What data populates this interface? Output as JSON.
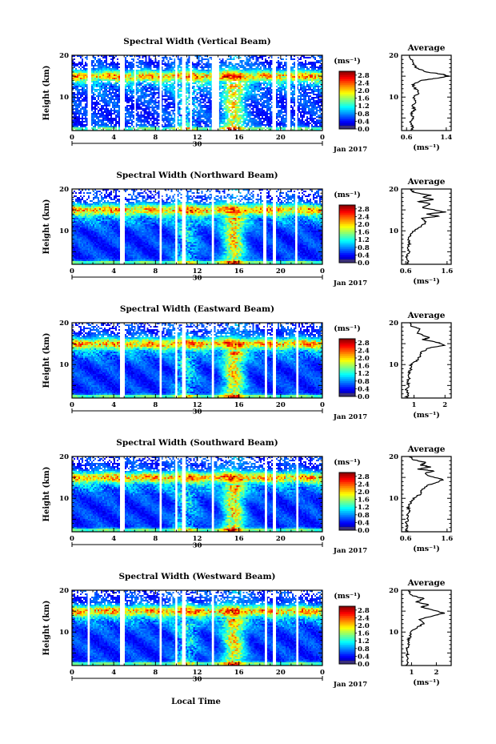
{
  "figure": {
    "xlabel": "Local Time",
    "date_label": "Jan 2017",
    "day_label": "30"
  },
  "chart_data": [
    {
      "type": "heatmap",
      "title": "Spectral Width (Vertical Beam)",
      "ylabel": "Height (km)",
      "x_ticks": [
        "0",
        "4",
        "8",
        "12",
        "16",
        "20",
        "0"
      ],
      "xlim": [
        0,
        24
      ],
      "y_ticks": [
        "10",
        "20"
      ],
      "ylim": [
        2,
        20
      ],
      "colorbar": {
        "unit": "(ms⁻¹)",
        "ticks": [
          "2.8",
          "2.4",
          "2.0",
          "1.6",
          "1.2",
          "0.8",
          "0.4",
          "0.0"
        ],
        "range": [
          0,
          3.0
        ]
      },
      "gaps_hours": [
        [
          1.5,
          1.8
        ],
        [
          4.6,
          5.0
        ],
        [
          6.0,
          6.1
        ],
        [
          8.4,
          8.6
        ],
        [
          9.9,
          10.1
        ],
        [
          10.6,
          10.9
        ],
        [
          11.3,
          11.5
        ],
        [
          13.4,
          14.1
        ],
        [
          19.2,
          19.5
        ],
        [
          20.6,
          20.9
        ],
        [
          21.4,
          21.6
        ]
      ],
      "profile": {
        "title": "Average",
        "x_ticks": [
          "0.6",
          "1.4"
        ],
        "xlim": [
          0.5,
          1.5
        ],
        "xlabel": "(ms⁻¹)",
        "y_ticks": [
          "10",
          "20"
        ],
        "ylim": [
          2,
          20
        ],
        "points": [
          [
            0.7,
            2
          ],
          [
            0.72,
            3
          ],
          [
            0.68,
            4
          ],
          [
            0.74,
            5
          ],
          [
            0.7,
            6
          ],
          [
            0.76,
            7
          ],
          [
            0.72,
            8
          ],
          [
            0.8,
            9
          ],
          [
            0.74,
            10
          ],
          [
            0.86,
            11
          ],
          [
            0.78,
            12
          ],
          [
            0.72,
            13
          ],
          [
            0.9,
            14
          ],
          [
            1.2,
            14.5
          ],
          [
            1.45,
            15
          ],
          [
            1.3,
            15.5
          ],
          [
            1.0,
            16
          ],
          [
            0.8,
            17
          ],
          [
            0.74,
            18
          ],
          [
            0.7,
            19
          ],
          [
            0.66,
            20
          ]
        ]
      }
    },
    {
      "type": "heatmap",
      "title": "Spectral Width (Northward Beam)",
      "ylabel": "Height (km)",
      "x_ticks": [
        "0",
        "4",
        "8",
        "12",
        "16",
        "20",
        "0"
      ],
      "xlim": [
        0,
        24
      ],
      "y_ticks": [
        "10",
        "20"
      ],
      "ylim": [
        2,
        20
      ],
      "colorbar": {
        "unit": "(ms⁻¹)",
        "ticks": [
          "2.8",
          "2.4",
          "2.0",
          "1.6",
          "1.2",
          "0.8",
          "0.4",
          "0.0"
        ],
        "range": [
          0,
          3.0
        ]
      },
      "gaps_hours": [
        [
          4.6,
          5.0
        ],
        [
          8.4,
          8.6
        ],
        [
          9.9,
          10.1
        ],
        [
          10.6,
          10.9
        ],
        [
          13.4,
          13.6
        ],
        [
          18.4,
          18.6
        ],
        [
          19.3,
          19.5
        ],
        [
          21.4,
          21.6
        ]
      ],
      "profile": {
        "title": "Average",
        "x_ticks": [
          "0.6",
          "1.6"
        ],
        "xlim": [
          0.5,
          1.7
        ],
        "xlabel": "(ms⁻¹)",
        "y_ticks": [
          "10",
          "20"
        ],
        "ylim": [
          2,
          20
        ],
        "points": [
          [
            0.62,
            2
          ],
          [
            0.66,
            3
          ],
          [
            0.62,
            4
          ],
          [
            0.68,
            5
          ],
          [
            0.64,
            6
          ],
          [
            0.7,
            7
          ],
          [
            0.66,
            8
          ],
          [
            0.72,
            9
          ],
          [
            0.8,
            10
          ],
          [
            0.95,
            11
          ],
          [
            1.1,
            12
          ],
          [
            1.0,
            13
          ],
          [
            1.4,
            13.5
          ],
          [
            1.1,
            14
          ],
          [
            1.55,
            14.5
          ],
          [
            1.3,
            15
          ],
          [
            1.0,
            15.5
          ],
          [
            1.2,
            16.5
          ],
          [
            0.9,
            17
          ],
          [
            1.3,
            17.5
          ],
          [
            1.0,
            18
          ],
          [
            1.2,
            18.5
          ],
          [
            0.8,
            19.2
          ],
          [
            0.7,
            20
          ]
        ]
      }
    },
    {
      "type": "heatmap",
      "title": "Spectral Width (Eastward Beam)",
      "ylabel": "Height (km)",
      "x_ticks": [
        "0",
        "4",
        "8",
        "12",
        "16",
        "20",
        "0"
      ],
      "xlim": [
        0,
        24
      ],
      "y_ticks": [
        "10",
        "20"
      ],
      "ylim": [
        2,
        20
      ],
      "colorbar": {
        "unit": "(ms⁻¹)",
        "ticks": [
          "2.8",
          "2.4",
          "2.0",
          "1.6",
          "1.2",
          "0.8",
          "0.4",
          "0.0"
        ],
        "range": [
          0,
          3.0
        ]
      },
      "gaps_hours": [
        [
          4.6,
          5.0
        ],
        [
          8.4,
          8.6
        ],
        [
          9.9,
          10.1
        ],
        [
          10.6,
          10.9
        ],
        [
          13.4,
          13.6
        ],
        [
          18.5,
          18.7
        ],
        [
          19.3,
          19.5
        ],
        [
          21.5,
          21.7
        ]
      ],
      "profile": {
        "title": "Average",
        "x_ticks": [
          "1",
          "2"
        ],
        "xlim": [
          0.6,
          2.2
        ],
        "xlabel": "(ms⁻¹)",
        "y_ticks": [
          "10",
          "20"
        ],
        "ylim": [
          2,
          20
        ],
        "points": [
          [
            0.75,
            2
          ],
          [
            0.8,
            3
          ],
          [
            0.76,
            4
          ],
          [
            0.82,
            5
          ],
          [
            0.8,
            6
          ],
          [
            0.86,
            7
          ],
          [
            0.84,
            8
          ],
          [
            0.9,
            9
          ],
          [
            0.9,
            10
          ],
          [
            1.1,
            11
          ],
          [
            1.2,
            12
          ],
          [
            1.25,
            13
          ],
          [
            1.5,
            14
          ],
          [
            2.0,
            14.6
          ],
          [
            1.8,
            15.2
          ],
          [
            1.3,
            16
          ],
          [
            1.5,
            16.5
          ],
          [
            1.1,
            17.5
          ],
          [
            1.2,
            18.5
          ],
          [
            0.9,
            19.2
          ],
          [
            0.85,
            20
          ]
        ]
      }
    },
    {
      "type": "heatmap",
      "title": "Spectral Width (Southward Beam)",
      "ylabel": "Height (km)",
      "x_ticks": [
        "0",
        "4",
        "8",
        "12",
        "16",
        "20",
        "0"
      ],
      "xlim": [
        0,
        24
      ],
      "y_ticks": [
        "10",
        "20"
      ],
      "ylim": [
        2,
        20
      ],
      "colorbar": {
        "unit": "(ms⁻¹)",
        "ticks": [
          "2.8",
          "2.4",
          "2.0",
          "1.6",
          "1.2",
          "0.8",
          "0.4",
          "0.0"
        ],
        "range": [
          0,
          3.0
        ]
      },
      "gaps_hours": [
        [
          4.6,
          5.0
        ],
        [
          8.4,
          8.6
        ],
        [
          9.9,
          10.1
        ],
        [
          10.6,
          10.9
        ],
        [
          13.4,
          13.6
        ],
        [
          18.5,
          18.7
        ],
        [
          19.3,
          19.5
        ],
        [
          21.5,
          21.7
        ]
      ],
      "profile": {
        "title": "Average",
        "x_ticks": [
          "0.6",
          "1.6"
        ],
        "xlim": [
          0.5,
          1.7
        ],
        "xlabel": "(ms⁻¹)",
        "y_ticks": [
          "10",
          "20"
        ],
        "ylim": [
          2,
          20
        ],
        "points": [
          [
            0.62,
            2
          ],
          [
            0.64,
            3
          ],
          [
            0.6,
            4
          ],
          [
            0.66,
            5
          ],
          [
            0.63,
            6
          ],
          [
            0.68,
            7
          ],
          [
            0.66,
            8
          ],
          [
            0.72,
            9
          ],
          [
            0.8,
            10
          ],
          [
            0.95,
            11
          ],
          [
            1.0,
            12
          ],
          [
            1.1,
            13
          ],
          [
            1.35,
            13.8
          ],
          [
            1.5,
            14.5
          ],
          [
            1.2,
            15.2
          ],
          [
            1.05,
            16
          ],
          [
            1.3,
            16.5
          ],
          [
            0.9,
            17
          ],
          [
            1.2,
            17.5
          ],
          [
            0.95,
            18
          ],
          [
            1.1,
            18.5
          ],
          [
            0.8,
            19.2
          ],
          [
            0.7,
            20
          ]
        ]
      }
    },
    {
      "type": "heatmap",
      "title": "Spectral Width (Westward Beam)",
      "ylabel": "Height (km)",
      "x_ticks": [
        "0",
        "4",
        "8",
        "12",
        "16",
        "20",
        "0"
      ],
      "xlim": [
        0,
        24
      ],
      "y_ticks": [
        "10",
        "20"
      ],
      "ylim": [
        2,
        20
      ],
      "colorbar": {
        "unit": "(ms⁻¹)",
        "ticks": [
          "2.8",
          "2.4",
          "2.0",
          "1.6",
          "1.2",
          "0.8",
          "0.4",
          "0.0"
        ],
        "range": [
          0,
          3.0
        ]
      },
      "gaps_hours": [
        [
          1.5,
          1.7
        ],
        [
          4.6,
          5.0
        ],
        [
          8.4,
          8.6
        ],
        [
          9.9,
          10.1
        ],
        [
          10.6,
          10.9
        ],
        [
          13.4,
          13.6
        ],
        [
          18.5,
          18.7
        ],
        [
          19.3,
          19.5
        ],
        [
          21.5,
          21.7
        ]
      ],
      "profile": {
        "title": "Average",
        "x_ticks": [
          "1",
          "2"
        ],
        "xlim": [
          0.6,
          2.6
        ],
        "xlabel": "(ms⁻¹)",
        "y_ticks": [
          "10",
          "20"
        ],
        "ylim": [
          2,
          20
        ],
        "points": [
          [
            0.78,
            2
          ],
          [
            0.84,
            3
          ],
          [
            0.8,
            4
          ],
          [
            0.86,
            5
          ],
          [
            0.82,
            6
          ],
          [
            0.9,
            7
          ],
          [
            0.86,
            8
          ],
          [
            0.95,
            9
          ],
          [
            0.96,
            10
          ],
          [
            1.2,
            11
          ],
          [
            1.5,
            12
          ],
          [
            1.3,
            13
          ],
          [
            1.8,
            13.8
          ],
          [
            2.3,
            14.5
          ],
          [
            1.9,
            15.2
          ],
          [
            1.4,
            16
          ],
          [
            1.7,
            16.5
          ],
          [
            1.2,
            17.2
          ],
          [
            1.5,
            18
          ],
          [
            1.0,
            18.8
          ],
          [
            0.9,
            20
          ]
        ]
      }
    }
  ]
}
